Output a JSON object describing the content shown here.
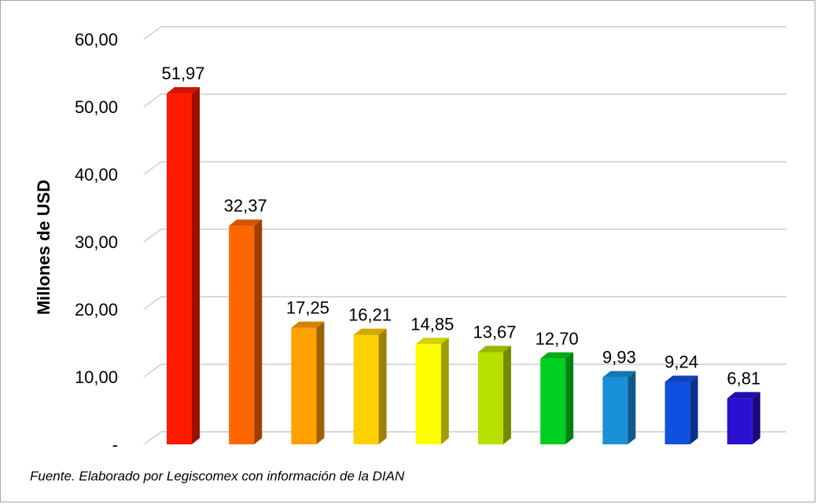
{
  "chart_data": {
    "type": "bar",
    "categories": [
      "",
      "",
      "",
      "",
      "",
      "",
      "",
      "",
      "",
      ""
    ],
    "values": [
      51.97,
      32.37,
      17.25,
      16.21,
      14.85,
      13.67,
      12.7,
      9.93,
      9.24,
      6.81
    ],
    "data_labels": [
      "51,97",
      "32,37",
      "17,25",
      "16,21",
      "14,85",
      "13,67",
      "12,70",
      "9,93",
      "9,24",
      "6,81"
    ],
    "colors": [
      "#ff1a00",
      "#ff6600",
      "#ffa000",
      "#ffd000",
      "#ffff00",
      "#b8e000",
      "#00d020",
      "#1a90d8",
      "#1050e0",
      "#2a10d0"
    ],
    "ylabel": "Millones de USD",
    "ylim": [
      0,
      60
    ],
    "yticks": [
      0,
      10,
      20,
      30,
      40,
      50,
      60
    ],
    "ytick_labels": [
      "-",
      "10,00",
      "20,00",
      "30,00",
      "40,00",
      "50,00",
      "60,00"
    ],
    "grid": true,
    "style": "3d-column"
  },
  "source_note": "Fuente. Elaborado por Legiscomex con información de la DIAN"
}
